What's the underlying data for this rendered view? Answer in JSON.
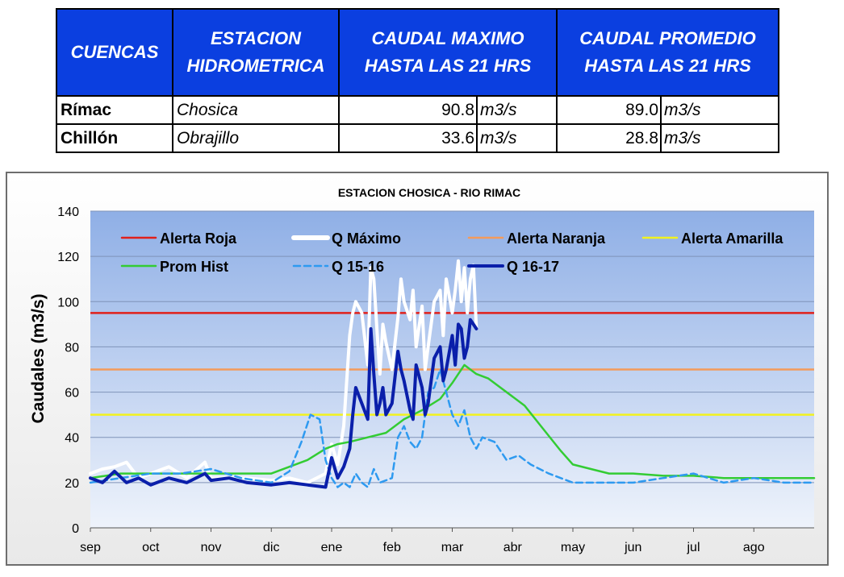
{
  "table": {
    "headers": [
      "CUENCAS",
      "ESTACION\nHIDROMETRICA",
      "CAUDAL MAXIMO\nHASTA  LAS 21 HRS",
      "CAUDAL PROMEDIO\nHASTA LAS 21 HRS"
    ],
    "rows": [
      {
        "basin": "Rímac",
        "station": "Chosica",
        "max": "90.8",
        "max_unit": "m3/s",
        "avg": "89.0",
        "avg_unit": "m3/s"
      },
      {
        "basin": "Chillón",
        "station": "Obrajillo",
        "max": "33.6",
        "max_unit": "m3/s",
        "avg": "28.8",
        "avg_unit": "m3/s"
      }
    ],
    "header_color": "#0B3FE0"
  },
  "chart_data": {
    "type": "line",
    "title": "ESTACION CHOSICA - RIO RIMAC",
    "ylabel": "Caudales (m3/s)",
    "xlabel": "",
    "ylim": [
      0,
      140
    ],
    "yticks": [
      0,
      20,
      40,
      60,
      80,
      100,
      120,
      140
    ],
    "months": [
      "sep",
      "oct",
      "nov",
      "dic",
      "ene",
      "feb",
      "mar",
      "abr",
      "may",
      "jun",
      "jul",
      "ago"
    ],
    "xlim": [
      0,
      12
    ],
    "grid": true,
    "legend_placement": "top",
    "thresholds": [
      {
        "name": "Alerta Roja",
        "value": 95,
        "color": "#E0201B"
      },
      {
        "name": "Alerta Naranja",
        "value": 70,
        "color": "#F39A5B"
      },
      {
        "name": "Alerta Amarilla",
        "value": 50,
        "color": "#F2F21F"
      }
    ],
    "series": [
      {
        "name": "Q Máximo",
        "color": "#FFFFFF",
        "style": "solid-thick",
        "x": [
          0,
          0.2,
          0.4,
          0.6,
          0.8,
          1,
          1.3,
          1.6,
          1.9,
          2,
          2.3,
          2.6,
          3,
          3.3,
          3.6,
          3.9,
          4,
          4.1,
          4.2,
          4.3,
          4.35,
          4.4,
          4.5,
          4.6,
          4.65,
          4.7,
          4.75,
          4.8,
          4.85,
          4.9,
          5,
          5.1,
          5.15,
          5.2,
          5.3,
          5.35,
          5.4,
          5.5,
          5.55,
          5.6,
          5.7,
          5.8,
          5.85,
          5.9,
          6,
          6.05,
          6.1,
          6.15,
          6.2,
          6.25,
          6.3,
          6.35,
          6.4
        ],
        "values": [
          24,
          26,
          27,
          29,
          22,
          24,
          27,
          22,
          29,
          22,
          22,
          22,
          21,
          22,
          20,
          24,
          37,
          28,
          45,
          85,
          95,
          100,
          95,
          72,
          115,
          110,
          88,
          68,
          90,
          82,
          70,
          93,
          110,
          100,
          92,
          105,
          80,
          98,
          70,
          80,
          100,
          105,
          85,
          110,
          95,
          105,
          118,
          100,
          115,
          95,
          110,
          116,
          88
        ]
      },
      {
        "name": "Prom Hist",
        "color": "#33CC33",
        "style": "solid",
        "x": [
          0,
          0.5,
          1,
          1.5,
          2,
          2.5,
          3,
          3.3,
          3.6,
          3.9,
          4.1,
          4.3,
          4.6,
          4.9,
          5.2,
          5.5,
          5.8,
          6,
          6.1,
          6.2,
          6.3,
          6.4,
          6.6,
          6.8,
          7,
          7.2,
          7.5,
          7.8,
          8,
          8.3,
          8.6,
          9,
          9.5,
          10,
          10.5,
          11,
          11.5,
          12
        ],
        "values": [
          22,
          24,
          24,
          24,
          24,
          24,
          24,
          27,
          30,
          35,
          37,
          38,
          40,
          42,
          48,
          52,
          57,
          64,
          68,
          72,
          70,
          68,
          66,
          62,
          58,
          54,
          44,
          34,
          28,
          26,
          24,
          24,
          23,
          23,
          22,
          22,
          22,
          22
        ]
      },
      {
        "name": "Q 15-16",
        "color": "#2E9AF0",
        "style": "dashed",
        "x": [
          0,
          0.5,
          1,
          1.5,
          2,
          2.5,
          3,
          3.3,
          3.5,
          3.65,
          3.8,
          3.9,
          4,
          4.1,
          4.2,
          4.3,
          4.4,
          4.5,
          4.6,
          4.7,
          4.8,
          5,
          5.1,
          5.2,
          5.3,
          5.4,
          5.5,
          5.6,
          5.7,
          5.8,
          5.9,
          6,
          6.1,
          6.2,
          6.3,
          6.4,
          6.5,
          6.7,
          6.9,
          7.1,
          7.3,
          7.6,
          8,
          8.5,
          9,
          9.5,
          10,
          10.5,
          11,
          11.5,
          12
        ],
        "values": [
          20,
          22,
          24,
          24,
          26,
          22,
          20,
          25,
          38,
          50,
          48,
          30,
          22,
          18,
          20,
          18,
          24,
          20,
          18,
          26,
          20,
          22,
          40,
          45,
          38,
          35,
          40,
          60,
          62,
          70,
          60,
          50,
          45,
          52,
          40,
          35,
          40,
          38,
          30,
          32,
          28,
          24,
          20,
          20,
          20,
          22,
          24,
          20,
          22,
          20,
          20
        ]
      },
      {
        "name": "Q 16-17",
        "color": "#0A1FAA",
        "style": "solid-thick",
        "x": [
          0,
          0.2,
          0.4,
          0.6,
          0.8,
          1,
          1.3,
          1.6,
          1.9,
          2,
          2.3,
          2.6,
          3,
          3.3,
          3.6,
          3.9,
          4,
          4.1,
          4.2,
          4.3,
          4.35,
          4.4,
          4.5,
          4.6,
          4.65,
          4.7,
          4.75,
          4.8,
          4.85,
          4.9,
          5,
          5.1,
          5.15,
          5.2,
          5.3,
          5.35,
          5.4,
          5.5,
          5.55,
          5.6,
          5.7,
          5.8,
          5.85,
          5.9,
          6,
          6.05,
          6.1,
          6.15,
          6.2,
          6.25,
          6.3,
          6.35,
          6.4
        ],
        "values": [
          22,
          20,
          25,
          20,
          22,
          19,
          22,
          20,
          24,
          21,
          22,
          20,
          19,
          20,
          19,
          18,
          31,
          22,
          27,
          35,
          50,
          62,
          55,
          48,
          88,
          68,
          50,
          55,
          62,
          50,
          55,
          78,
          70,
          65,
          52,
          48,
          72,
          62,
          50,
          55,
          75,
          80,
          65,
          70,
          85,
          72,
          90,
          88,
          75,
          80,
          92,
          90,
          88
        ]
      }
    ]
  }
}
